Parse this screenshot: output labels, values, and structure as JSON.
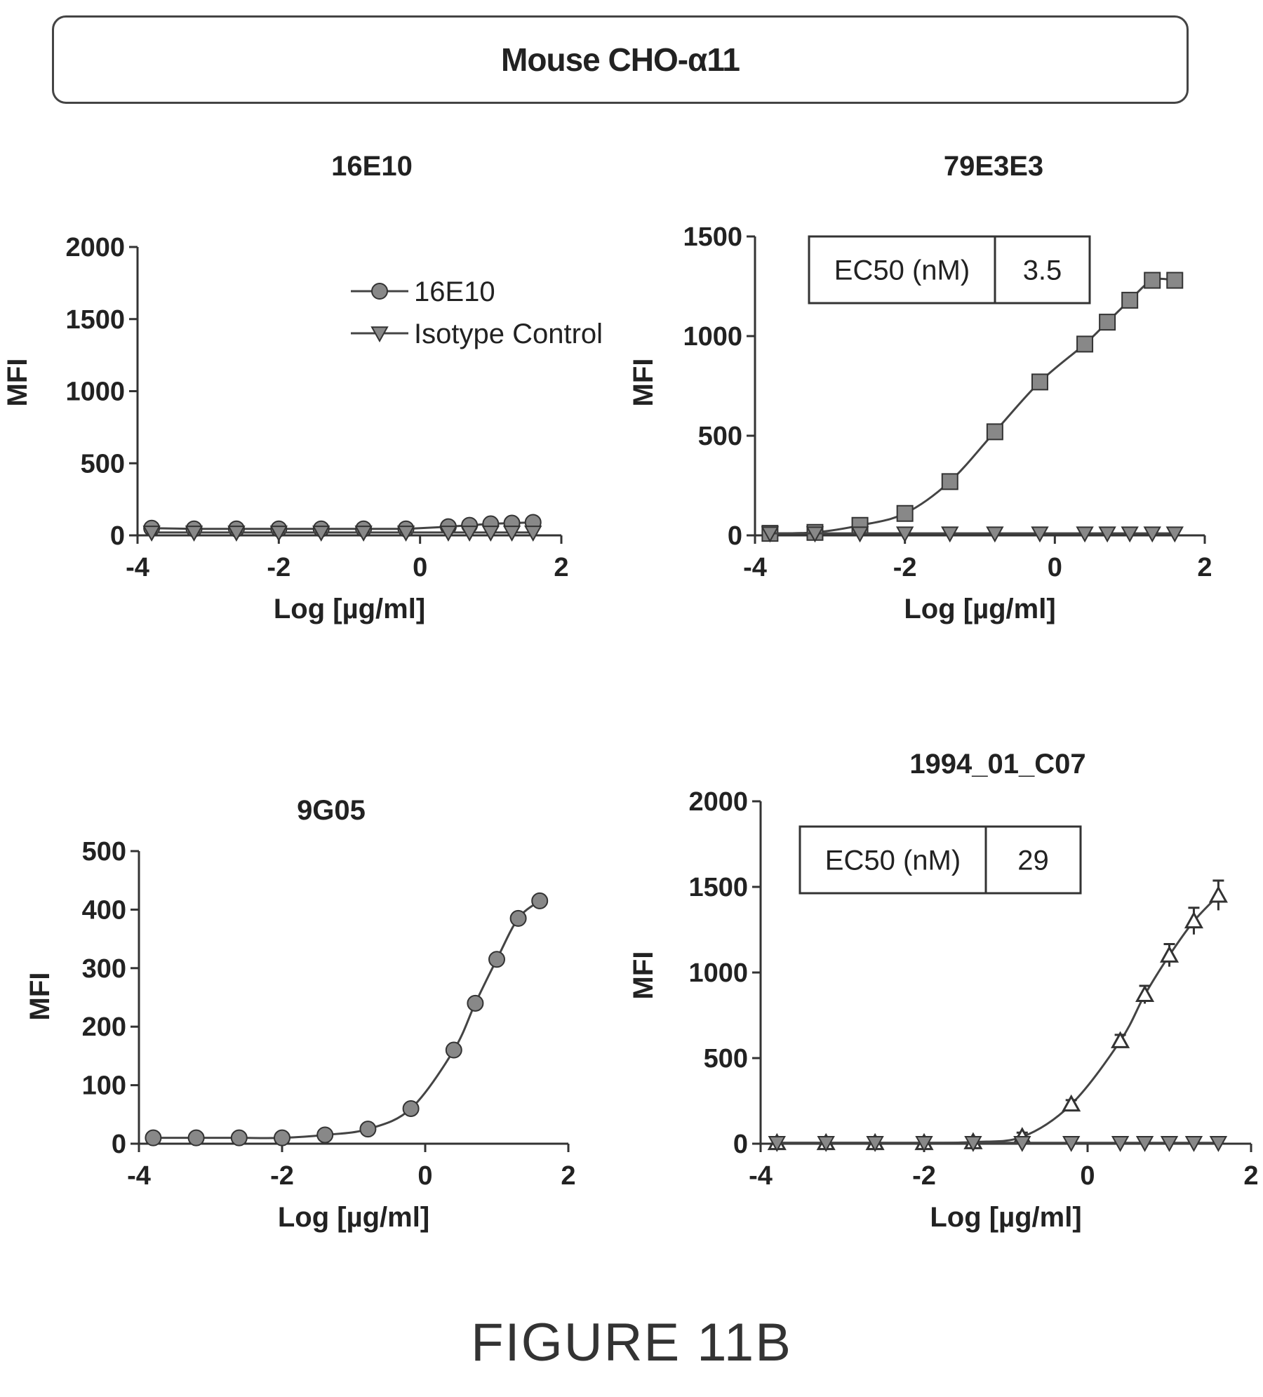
{
  "header_title": "Mouse CHO-α11",
  "figure_caption": "FIGURE 11B",
  "chart_data": [
    {
      "type": "line",
      "title": "16E10",
      "xlabel": "Log [µg/ml]",
      "ylabel": "MFI",
      "xlim": [
        -4,
        2
      ],
      "ylim": [
        0,
        2000
      ],
      "xticks": [
        -4,
        -2,
        0,
        2
      ],
      "xtick_labels": [
        "-4",
        "-2",
        "0",
        "2"
      ],
      "yticks": [
        0,
        500,
        1000,
        1500,
        2000
      ],
      "ytick_labels": [
        "0",
        "500",
        "1000",
        "1500",
        "2000"
      ],
      "legend": {
        "position": "top-right",
        "entries": [
          "16E10",
          "Isotype Control"
        ]
      },
      "series": [
        {
          "name": "16E10",
          "marker": "circle",
          "colors": {
            "fill": "#888888"
          },
          "x": [
            -3.8,
            -3.2,
            -2.6,
            -2.0,
            -1.4,
            -0.8,
            -0.2,
            0.4,
            0.7,
            1.0,
            1.3,
            1.6
          ],
          "y": [
            50,
            45,
            45,
            45,
            45,
            45,
            45,
            60,
            70,
            80,
            85,
            90
          ]
        },
        {
          "name": "Isotype Control",
          "marker": "triangle-down",
          "colors": {
            "fill": "#888888"
          },
          "x": [
            -3.8,
            -3.2,
            -2.6,
            -2.0,
            -1.4,
            -0.8,
            -0.2,
            0.4,
            0.7,
            1.0,
            1.3,
            1.6
          ],
          "y": [
            20,
            20,
            20,
            20,
            20,
            20,
            20,
            20,
            20,
            20,
            20,
            20
          ]
        }
      ]
    },
    {
      "type": "line",
      "title": "79E3E3",
      "xlabel": "Log [µg/ml]",
      "ylabel": "MFI",
      "xlim": [
        -4,
        2
      ],
      "ylim": [
        0,
        1500
      ],
      "xticks": [
        -4,
        -2,
        0,
        2
      ],
      "xtick_labels": [
        "-4",
        "-2",
        "0",
        "2"
      ],
      "yticks": [
        0,
        500,
        1000,
        1500
      ],
      "ytick_labels": [
        "0",
        "500",
        "1000",
        "1500"
      ],
      "ec50": {
        "label": "EC50 (nM)",
        "value": "3.5"
      },
      "series": [
        {
          "marker": "square",
          "fitted_curve": true,
          "x": [
            -3.8,
            -3.2,
            -2.6,
            -2.0,
            -1.4,
            -0.8,
            -0.2,
            0.4,
            0.7,
            1.0,
            1.3,
            1.6
          ],
          "y": [
            10,
            15,
            50,
            110,
            270,
            520,
            770,
            960,
            1070,
            1180,
            1280,
            1280
          ]
        },
        {
          "marker": "triangle-down",
          "x": [
            -3.8,
            -3.2,
            -2.6,
            -2.0,
            -1.4,
            -0.8,
            -0.2,
            0.4,
            0.7,
            1.0,
            1.3,
            1.6
          ],
          "y": [
            10,
            10,
            10,
            10,
            10,
            10,
            10,
            10,
            10,
            10,
            10,
            10
          ]
        }
      ]
    },
    {
      "type": "line",
      "title": "9G05",
      "xlabel": "Log [µg/ml]",
      "ylabel": "MFI",
      "xlim": [
        -4,
        2
      ],
      "ylim": [
        0,
        500
      ],
      "xticks": [
        -4,
        -2,
        0,
        2
      ],
      "xtick_labels": [
        "-4",
        "-2",
        "0",
        "2"
      ],
      "yticks": [
        0,
        100,
        200,
        300,
        400,
        500
      ],
      "ytick_labels": [
        "0",
        "100",
        "200",
        "300",
        "400",
        "500"
      ],
      "series": [
        {
          "marker": "circle",
          "fitted_curve": true,
          "x": [
            -3.8,
            -3.2,
            -2.6,
            -2.0,
            -1.4,
            -0.8,
            -0.2,
            0.4,
            0.7,
            1.0,
            1.3,
            1.6
          ],
          "y": [
            10,
            10,
            10,
            10,
            15,
            25,
            60,
            160,
            240,
            315,
            385,
            415
          ]
        }
      ]
    },
    {
      "type": "line",
      "title": "1994_01_C07",
      "xlabel": "Log [µg/ml]",
      "ylabel": "MFI",
      "xlim": [
        -4,
        2
      ],
      "ylim": [
        0,
        2000
      ],
      "xticks": [
        -4,
        -2,
        0,
        2
      ],
      "xtick_labels": [
        "-4",
        "-2",
        "0",
        "2"
      ],
      "yticks": [
        0,
        500,
        1000,
        1500,
        2000
      ],
      "ytick_labels": [
        "0",
        "500",
        "1000",
        "1500",
        "2000"
      ],
      "ec50": {
        "label": "EC50 (nM)",
        "value": "29"
      },
      "series": [
        {
          "marker": "triangle-up-open",
          "fitted_curve": true,
          "error_bars": true,
          "x": [
            -3.8,
            -3.2,
            -2.6,
            -2.0,
            -1.4,
            -0.8,
            -0.2,
            0.4,
            0.7,
            1.0,
            1.3,
            1.6
          ],
          "y": [
            5,
            5,
            5,
            5,
            10,
            40,
            230,
            600,
            870,
            1100,
            1300,
            1450
          ]
        },
        {
          "marker": "triangle-down",
          "x": [
            -3.8,
            -3.2,
            -2.6,
            -2.0,
            -1.4,
            -0.8,
            -0.2,
            0.4,
            0.7,
            1.0,
            1.3,
            1.6
          ],
          "y": [
            5,
            5,
            5,
            5,
            5,
            5,
            5,
            5,
            5,
            5,
            5,
            5
          ]
        }
      ]
    }
  ]
}
